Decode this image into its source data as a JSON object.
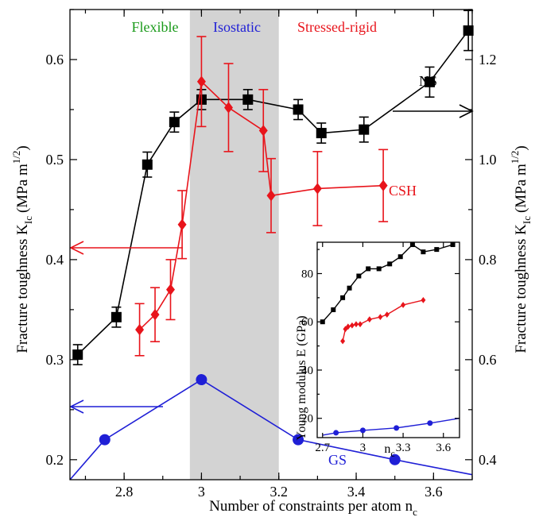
{
  "chart_data": [
    {
      "type": "line",
      "xlabel": "Number of constraints per atom n",
      "xlabel_sub": "c",
      "ylabel_left": "Fracture toughness K",
      "ylabel_right": "Fracture toughness K",
      "ylabel_sub": "Ic",
      "ylabel_unit": "(MPa m",
      "ylabel_unit_sup": "1/2",
      "ylabel_unit_end": ")",
      "xlim": [
        2.66,
        3.7
      ],
      "ylim_left": [
        0.18,
        0.65
      ],
      "ylim_right": [
        0.36,
        1.3
      ],
      "x_ticks": [
        "2.8",
        "3",
        "3.2",
        "3.4",
        "3.6"
      ],
      "y_ticks_left": [
        "0.2",
        "0.3",
        "0.4",
        "0.5",
        "0.6"
      ],
      "y_ticks_right": [
        "0.4",
        "0.6",
        "0.8",
        "1.0",
        "1.2"
      ],
      "shaded_region": {
        "x": [
          2.97,
          3.2
        ],
        "color": "#d3d3d3"
      },
      "region_labels": [
        {
          "text": "Flexible",
          "color": "#1a9a1a"
        },
        {
          "text": "Isostatic",
          "color": "#1f1fd6"
        },
        {
          "text": "Stressed-rigid",
          "color": "#e8141b"
        }
      ],
      "series": [
        {
          "name": "NS",
          "axis": "right",
          "color": "#000000",
          "marker": "square",
          "x": [
            2.68,
            2.78,
            2.86,
            2.93,
            3.0,
            3.12,
            3.25,
            3.31,
            3.42,
            3.59,
            3.69
          ],
          "y": [
            0.61,
            0.685,
            0.99,
            1.075,
            1.12,
            1.12,
            1.1,
            1.053,
            1.06,
            1.155,
            1.258
          ],
          "err": [
            0.02,
            0.02,
            0.025,
            0.02,
            0.02,
            0.02,
            0.02,
            0.02,
            0.025,
            0.03,
            0.04
          ]
        },
        {
          "name": "CSH",
          "axis": "left",
          "color": "#e8141b",
          "marker": "diamond",
          "x": [
            2.84,
            2.88,
            2.92,
            2.95,
            3.0,
            3.07,
            3.16,
            3.18,
            3.3,
            3.47
          ],
          "y": [
            0.33,
            0.345,
            0.37,
            0.435,
            0.578,
            0.552,
            0.529,
            0.464,
            0.471,
            0.474
          ],
          "err": [
            0.026,
            0.027,
            0.03,
            0.034,
            0.045,
            0.044,
            0.041,
            0.037,
            0.037,
            0.036
          ]
        },
        {
          "name": "GS",
          "axis": "left",
          "color": "#1f1fd6",
          "marker": "circle",
          "x": [
            2.66,
            2.75,
            3.0,
            3.25,
            3.5,
            3.7
          ],
          "y": [
            0.18,
            0.22,
            0.28,
            0.22,
            0.2,
            0.185
          ],
          "marker_points": [
            1,
            2,
            3,
            4
          ]
        }
      ],
      "annotations": [
        {
          "text": "NS",
          "color": "#000000",
          "arrow": "right"
        },
        {
          "text": "CSH",
          "color": "#e8141b",
          "arrow": "left"
        },
        {
          "text": "GS",
          "color": "#1f1fd6",
          "arrow": "left"
        }
      ]
    },
    {
      "type": "line",
      "inset": true,
      "xlabel": "n",
      "xlabel_sub": "c",
      "ylabel": "Young modulus E (GPa)",
      "xlim": [
        2.66,
        3.72
      ],
      "ylim": [
        12,
        93
      ],
      "x_ticks": [
        "2.7",
        "3",
        "3.3",
        "3.6"
      ],
      "y_ticks": [
        "20",
        "40",
        "60",
        "80"
      ],
      "series": [
        {
          "name": "NS",
          "color": "#000000",
          "marker": "square",
          "x": [
            2.7,
            2.78,
            2.85,
            2.9,
            2.97,
            3.04,
            3.12,
            3.2,
            3.28,
            3.37,
            3.45,
            3.55,
            3.67
          ],
          "y": [
            60,
            65,
            70,
            74,
            79,
            82,
            82,
            84,
            87,
            92,
            89,
            90,
            92
          ]
        },
        {
          "name": "CSH",
          "color": "#e8141b",
          "marker": "diamond",
          "x": [
            2.85,
            2.87,
            2.89,
            2.92,
            2.95,
            2.98,
            3.05,
            3.13,
            3.18,
            3.3,
            3.45
          ],
          "y": [
            52,
            57,
            58,
            58.5,
            59,
            59,
            61,
            62,
            63,
            67,
            69
          ]
        },
        {
          "name": "GS",
          "color": "#1f1fd6",
          "marker": "circle",
          "x": [
            2.7,
            2.8,
            3.0,
            3.25,
            3.5,
            3.72
          ],
          "y": [
            13,
            14,
            15,
            16,
            18,
            20
          ],
          "marker_points": [
            1,
            2,
            3,
            4
          ]
        }
      ]
    }
  ]
}
